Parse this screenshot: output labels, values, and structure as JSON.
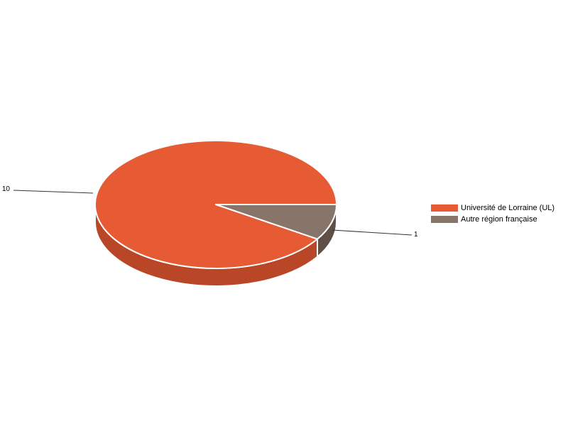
{
  "page": {
    "background": "#ffffff"
  },
  "chart_data": {
    "type": "pie",
    "style": "3d",
    "title": "",
    "total": 11,
    "slices": [
      {
        "label": "Université de Lorraine (UL)",
        "value": 10,
        "color": "#e65b33",
        "side_color": "#b94626"
      },
      {
        "label": "Autre région française",
        "value": 1,
        "color": "#87756a",
        "side_color": "#5e5046"
      }
    ],
    "data_labels": [
      10,
      1
    ],
    "legend_position": "right",
    "border_color": "#ffffff",
    "leader_line_color": "#333333",
    "label_color": "#000000"
  }
}
